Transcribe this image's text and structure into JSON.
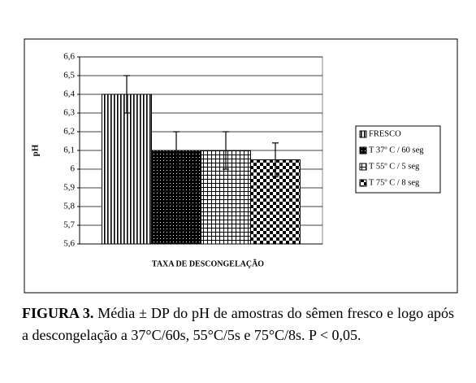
{
  "chart_data": {
    "type": "bar",
    "categories": [
      null
    ],
    "series": [
      {
        "name": "FRESCO",
        "color": "#000000",
        "pattern": "vertical",
        "values": [
          6.4
        ],
        "errors": [
          0.1
        ]
      },
      {
        "name": "T 37º C / 60 seg",
        "color": "#000000",
        "pattern": "dots",
        "values": [
          6.1
        ],
        "errors": [
          0.1
        ]
      },
      {
        "name": "T 55º C / 5 seg",
        "color": "#000000",
        "pattern": "grid",
        "values": [
          6.1
        ],
        "errors": [
          0.1
        ]
      },
      {
        "name": "T 75º C / 8 seg",
        "color": "#000000",
        "pattern": "checker",
        "values": [
          6.05
        ],
        "errors": [
          0.09
        ]
      }
    ],
    "ylabel": "pH",
    "xlabel": "TAXA DE DESCONGELAÇÃO",
    "ylim": [
      5.6,
      6.6
    ],
    "yticks": [
      {
        "value": 5.6,
        "label": "5,6"
      },
      {
        "value": 5.7,
        "label": "5,7"
      },
      {
        "value": 5.8,
        "label": "5,8"
      },
      {
        "value": 5.9,
        "label": "5,9"
      },
      6,
      {
        "value": 6.1,
        "label": "6,1"
      },
      {
        "value": 6.2,
        "label": "6,2"
      },
      {
        "value": 6.3,
        "label": "6,3"
      },
      {
        "value": 6.4,
        "label": "6,4"
      },
      {
        "value": 6.5,
        "label": "6,5"
      },
      {
        "value": 6.6,
        "label": "6,6"
      }
    ],
    "grid": true,
    "legend": "right"
  },
  "caption": {
    "label": "FIGURA 3.",
    "text": "Média ± DP do pH de amostras do sêmen fresco e logo após a descongelação a 37°C/60s, 55°C/5s e 75°C/8s. P < 0,05."
  }
}
